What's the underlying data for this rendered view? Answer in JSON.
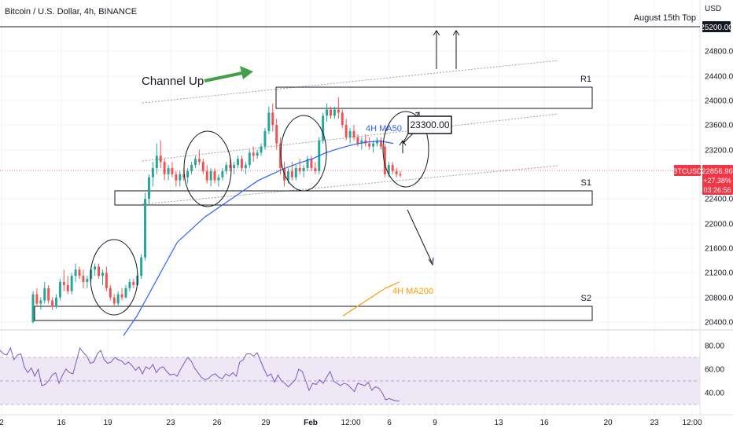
{
  "header": {
    "title": "Bitcoin / U.S. Dollar, 4h, BINANCE"
  },
  "price_axis": {
    "currency": "USD",
    "ticks": [
      "24800.00",
      "24400.00",
      "24000.00",
      "23600.00",
      "23200.00",
      "22400.00",
      "22000.00",
      "21600.00",
      "21200.00",
      "20800.00",
      "20400.00"
    ],
    "highlight_label": "25200.00"
  },
  "indicator_axis": {
    "ticks": [
      "80.00",
      "60.00",
      "40.00"
    ]
  },
  "time_axis": {
    "ticks": [
      "2",
      "16",
      "19",
      "23",
      "26",
      "29",
      "Feb",
      "12:00",
      "6",
      "9",
      "13",
      "16",
      "20",
      "23",
      "12:00"
    ]
  },
  "price_badge": {
    "symbol": "BTCUSD",
    "price": "22856.96",
    "change": "+27.38%",
    "countdown": "03:26:56"
  },
  "annotations": {
    "top_label": "August 15th Top",
    "channel_label": "Channel Up",
    "r1": "R1",
    "s1": "S1",
    "s2": "S2",
    "ma50": "4H MA50",
    "ma200": "4H MA200",
    "callout": "23300.00"
  },
  "colors": {
    "up": "#26a69a",
    "down": "#ef5350",
    "ma50": "#2962ff",
    "ma200": "#ff9800",
    "arrow_green": "#43a047",
    "rsi_line": "#7e57c2",
    "rsi_band": "#ede7f6",
    "badge": "#f23645"
  },
  "chart_data": {
    "type": "candlestick",
    "title": "Bitcoin / U.S. Dollar, 4h, BINANCE",
    "y_axis": {
      "unit": "USD",
      "range": [
        20200,
        25500
      ]
    },
    "x_ticks": [
      "2",
      "16",
      "19",
      "23",
      "26",
      "29",
      "Feb",
      "12:00",
      "6",
      "9",
      "13",
      "16",
      "20",
      "23",
      "12:00"
    ],
    "levels": [
      {
        "name": "August 15th Top",
        "value": 25200
      },
      {
        "name": "R1",
        "range": [
          23900,
          24230
        ]
      },
      {
        "name": "S1",
        "range": [
          22350,
          22570
        ]
      },
      {
        "name": "S2",
        "range": [
          20500,
          20730
        ]
      },
      {
        "name": "Target",
        "value": 23300
      }
    ],
    "moving_averages": [
      {
        "name": "4H MA50",
        "values": [
          20180,
          20500,
          20900,
          21300,
          21700,
          21900,
          22100,
          22250,
          22400,
          22550,
          22700,
          22800,
          22900,
          22980,
          23050,
          23150,
          23220,
          23280,
          23320,
          23340,
          23300
        ]
      },
      {
        "name": "4H MA200",
        "values": [
          20500,
          20650,
          20800,
          20950,
          21050
        ]
      }
    ],
    "rsi": {
      "range": [
        30,
        90
      ],
      "band": [
        30,
        70
      ],
      "midline": 50,
      "values": [
        76,
        73,
        72,
        78,
        68,
        72,
        73,
        62,
        57,
        61,
        54,
        60,
        46,
        47,
        50,
        55,
        57,
        48,
        55,
        60,
        57,
        56,
        67,
        78,
        74,
        71,
        65,
        66,
        73,
        76,
        68,
        65,
        66,
        70,
        68,
        67,
        64,
        66,
        63,
        59,
        62,
        56,
        62,
        60,
        64,
        57,
        61,
        62,
        58,
        55,
        56,
        54,
        60,
        65,
        70,
        67,
        61,
        57,
        53,
        51,
        52,
        55,
        56,
        53,
        52,
        56,
        54,
        57,
        54,
        66,
        68,
        73,
        73,
        71,
        74,
        67,
        60,
        54,
        56,
        49,
        55,
        50,
        48,
        45,
        48,
        51,
        60,
        58,
        50,
        42,
        48,
        47,
        51,
        48,
        53,
        58,
        50,
        48,
        46,
        48,
        47,
        44,
        41,
        48,
        47,
        46,
        49,
        42,
        45,
        44,
        40,
        34,
        35,
        34,
        33,
        33
      ]
    },
    "candles": [
      {
        "o": 20400,
        "h": 20900,
        "l": 20380,
        "c": 20850
      },
      {
        "o": 20850,
        "h": 20950,
        "l": 20650,
        "c": 20700
      },
      {
        "o": 20700,
        "h": 20800,
        "l": 20600,
        "c": 20750
      },
      {
        "o": 20750,
        "h": 21050,
        "l": 20700,
        "c": 20950
      },
      {
        "o": 20950,
        "h": 21000,
        "l": 20700,
        "c": 20750
      },
      {
        "o": 20750,
        "h": 20800,
        "l": 20600,
        "c": 20650
      },
      {
        "o": 20650,
        "h": 20850,
        "l": 20620,
        "c": 20800
      },
      {
        "o": 20800,
        "h": 21100,
        "l": 20750,
        "c": 21050
      },
      {
        "o": 21050,
        "h": 21250,
        "l": 20900,
        "c": 21000
      },
      {
        "o": 21000,
        "h": 21150,
        "l": 20850,
        "c": 20900
      },
      {
        "o": 20900,
        "h": 21200,
        "l": 20850,
        "c": 21150
      },
      {
        "o": 21150,
        "h": 21350,
        "l": 21050,
        "c": 21250
      },
      {
        "o": 21250,
        "h": 21300,
        "l": 21100,
        "c": 21150
      },
      {
        "o": 21150,
        "h": 21250,
        "l": 20950,
        "c": 21050
      },
      {
        "o": 21050,
        "h": 21150,
        "l": 20950,
        "c": 21100
      },
      {
        "o": 21100,
        "h": 21300,
        "l": 21050,
        "c": 21250
      },
      {
        "o": 21250,
        "h": 21350,
        "l": 21150,
        "c": 21300
      },
      {
        "o": 21300,
        "h": 21350,
        "l": 21100,
        "c": 21150
      },
      {
        "o": 21150,
        "h": 21250,
        "l": 21000,
        "c": 21200
      },
      {
        "o": 21200,
        "h": 21300,
        "l": 20900,
        "c": 20950
      },
      {
        "o": 20950,
        "h": 21000,
        "l": 20750,
        "c": 20800
      },
      {
        "o": 20800,
        "h": 20850,
        "l": 20650,
        "c": 20700
      },
      {
        "o": 20700,
        "h": 20900,
        "l": 20650,
        "c": 20850
      },
      {
        "o": 20850,
        "h": 20950,
        "l": 20750,
        "c": 20800
      },
      {
        "o": 20800,
        "h": 21000,
        "l": 20780,
        "c": 20950
      },
      {
        "o": 20950,
        "h": 21100,
        "l": 20900,
        "c": 21050
      },
      {
        "o": 21050,
        "h": 21100,
        "l": 20950,
        "c": 21000
      },
      {
        "o": 21000,
        "h": 21200,
        "l": 20980,
        "c": 21150
      },
      {
        "o": 21150,
        "h": 21500,
        "l": 21100,
        "c": 21450
      },
      {
        "o": 21450,
        "h": 22500,
        "l": 21400,
        "c": 22400
      },
      {
        "o": 22400,
        "h": 22800,
        "l": 22300,
        "c": 22750
      },
      {
        "o": 22750,
        "h": 23000,
        "l": 22600,
        "c": 22900
      },
      {
        "o": 22900,
        "h": 23300,
        "l": 22800,
        "c": 23100
      },
      {
        "o": 23100,
        "h": 23350,
        "l": 22900,
        "c": 23000
      },
      {
        "o": 23000,
        "h": 23050,
        "l": 22700,
        "c": 22800
      },
      {
        "o": 22800,
        "h": 22950,
        "l": 22700,
        "c": 22900
      },
      {
        "o": 22900,
        "h": 23000,
        "l": 22750,
        "c": 22800
      },
      {
        "o": 22800,
        "h": 22850,
        "l": 22600,
        "c": 22700
      },
      {
        "o": 22700,
        "h": 22850,
        "l": 22600,
        "c": 22800
      },
      {
        "o": 22800,
        "h": 22900,
        "l": 22700,
        "c": 22750
      },
      {
        "o": 22750,
        "h": 22900,
        "l": 22650,
        "c": 22850
      },
      {
        "o": 22850,
        "h": 23000,
        "l": 22800,
        "c": 22950
      },
      {
        "o": 22950,
        "h": 23100,
        "l": 22900,
        "c": 23050
      },
      {
        "o": 23050,
        "h": 23200,
        "l": 22950,
        "c": 23000
      },
      {
        "o": 23000,
        "h": 23050,
        "l": 22800,
        "c": 22850
      },
      {
        "o": 22850,
        "h": 22950,
        "l": 22650,
        "c": 22700
      },
      {
        "o": 22700,
        "h": 22900,
        "l": 22600,
        "c": 22850
      },
      {
        "o": 22850,
        "h": 22900,
        "l": 22650,
        "c": 22700
      },
      {
        "o": 22700,
        "h": 22800,
        "l": 22600,
        "c": 22750
      },
      {
        "o": 22750,
        "h": 22900,
        "l": 22700,
        "c": 22850
      },
      {
        "o": 22850,
        "h": 23000,
        "l": 22800,
        "c": 22950
      },
      {
        "o": 22950,
        "h": 23050,
        "l": 22850,
        "c": 22900
      },
      {
        "o": 22900,
        "h": 23000,
        "l": 22800,
        "c": 22950
      },
      {
        "o": 22950,
        "h": 23100,
        "l": 22900,
        "c": 23050
      },
      {
        "o": 23050,
        "h": 23100,
        "l": 22850,
        "c": 22900
      },
      {
        "o": 22900,
        "h": 23000,
        "l": 22800,
        "c": 22950
      },
      {
        "o": 22950,
        "h": 23200,
        "l": 22900,
        "c": 23150
      },
      {
        "o": 23150,
        "h": 23250,
        "l": 23000,
        "c": 23100
      },
      {
        "o": 23100,
        "h": 23200,
        "l": 23050,
        "c": 23150
      },
      {
        "o": 23150,
        "h": 23300,
        "l": 23100,
        "c": 23250
      },
      {
        "o": 23250,
        "h": 23550,
        "l": 23200,
        "c": 23500
      },
      {
        "o": 23500,
        "h": 23900,
        "l": 23450,
        "c": 23800
      },
      {
        "o": 23800,
        "h": 23950,
        "l": 23500,
        "c": 23600
      },
      {
        "o": 23600,
        "h": 23700,
        "l": 23200,
        "c": 23300
      },
      {
        "o": 23300,
        "h": 23400,
        "l": 22800,
        "c": 22900
      },
      {
        "o": 22900,
        "h": 23000,
        "l": 22600,
        "c": 22700
      },
      {
        "o": 22700,
        "h": 22900,
        "l": 22650,
        "c": 22850
      },
      {
        "o": 22850,
        "h": 23000,
        "l": 22700,
        "c": 22750
      },
      {
        "o": 22750,
        "h": 22950,
        "l": 22700,
        "c": 22900
      },
      {
        "o": 22900,
        "h": 23050,
        "l": 22800,
        "c": 22850
      },
      {
        "o": 22850,
        "h": 22950,
        "l": 22750,
        "c": 22900
      },
      {
        "o": 22900,
        "h": 23100,
        "l": 22850,
        "c": 23050
      },
      {
        "o": 23050,
        "h": 23100,
        "l": 22850,
        "c": 22900
      },
      {
        "o": 22900,
        "h": 23000,
        "l": 22800,
        "c": 22850
      },
      {
        "o": 22850,
        "h": 23400,
        "l": 22800,
        "c": 23350
      },
      {
        "o": 23350,
        "h": 23800,
        "l": 23300,
        "c": 23750
      },
      {
        "o": 23750,
        "h": 23950,
        "l": 23650,
        "c": 23850
      },
      {
        "o": 23850,
        "h": 23900,
        "l": 23700,
        "c": 23750
      },
      {
        "o": 23750,
        "h": 23900,
        "l": 23700,
        "c": 23850
      },
      {
        "o": 23850,
        "h": 24050,
        "l": 23700,
        "c": 23800
      },
      {
        "o": 23800,
        "h": 23850,
        "l": 23550,
        "c": 23600
      },
      {
        "o": 23600,
        "h": 23700,
        "l": 23350,
        "c": 23400
      },
      {
        "o": 23400,
        "h": 23550,
        "l": 23300,
        "c": 23500
      },
      {
        "o": 23500,
        "h": 23600,
        "l": 23350,
        "c": 23400
      },
      {
        "o": 23400,
        "h": 23450,
        "l": 23250,
        "c": 23300
      },
      {
        "o": 23300,
        "h": 23400,
        "l": 23200,
        "c": 23350
      },
      {
        "o": 23350,
        "h": 23450,
        "l": 23250,
        "c": 23300
      },
      {
        "o": 23300,
        "h": 23400,
        "l": 23200,
        "c": 23250
      },
      {
        "o": 23250,
        "h": 23350,
        "l": 23150,
        "c": 23300
      },
      {
        "o": 23300,
        "h": 23400,
        "l": 23250,
        "c": 23350
      },
      {
        "o": 23350,
        "h": 23400,
        "l": 23200,
        "c": 23250
      },
      {
        "o": 23250,
        "h": 23300,
        "l": 22750,
        "c": 22800
      },
      {
        "o": 22800,
        "h": 23000,
        "l": 22750,
        "c": 22950
      },
      {
        "o": 22950,
        "h": 23000,
        "l": 22800,
        "c": 22850
      },
      {
        "o": 22850,
        "h": 22900,
        "l": 22750,
        "c": 22800
      },
      {
        "o": 22800,
        "h": 22850,
        "l": 22750,
        "c": 22780
      }
    ]
  }
}
